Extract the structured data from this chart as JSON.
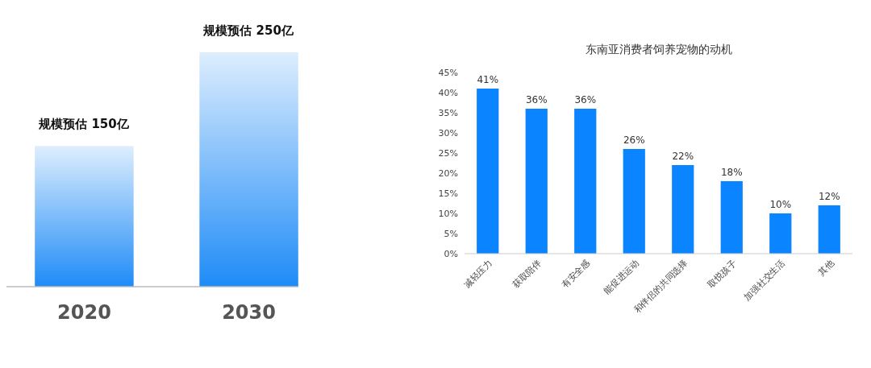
{
  "chart_data": [
    {
      "type": "bar",
      "categories": [
        "2020",
        "2030"
      ],
      "values": [
        150,
        250
      ],
      "value_labels": [
        "规模预估 150亿",
        "规模预估 250亿"
      ],
      "color": "#1e8bf7"
    },
    {
      "type": "bar",
      "title": "东南亚消费者饲养宠物的动机",
      "categories": [
        "减轻压力",
        "获取陪伴",
        "有安全感",
        "能促进运动",
        "和伴侣的共同选择",
        "取悦孩子",
        "加强社交生活",
        "其他"
      ],
      "values": [
        41,
        36,
        36,
        26,
        22,
        18,
        10,
        12
      ],
      "value_labels": [
        "41%",
        "36%",
        "36%",
        "26%",
        "22%",
        "18%",
        "10%",
        "12%"
      ],
      "color": "#0a84ff",
      "ylim": [
        0,
        45
      ],
      "yticks": [
        {
          "value": 0,
          "label": "0%"
        },
        {
          "value": 5,
          "label": "5%"
        },
        {
          "value": 10,
          "label": "10%"
        },
        {
          "value": 15,
          "label": "15%"
        },
        {
          "value": 20,
          "label": "20%"
        },
        {
          "value": 25,
          "label": "25%"
        },
        {
          "value": 30,
          "label": "30%"
        },
        {
          "value": 35,
          "label": "35%"
        },
        {
          "value": 40,
          "label": "40%"
        },
        {
          "value": 45,
          "label": "45%"
        }
      ],
      "grid": false
    }
  ]
}
